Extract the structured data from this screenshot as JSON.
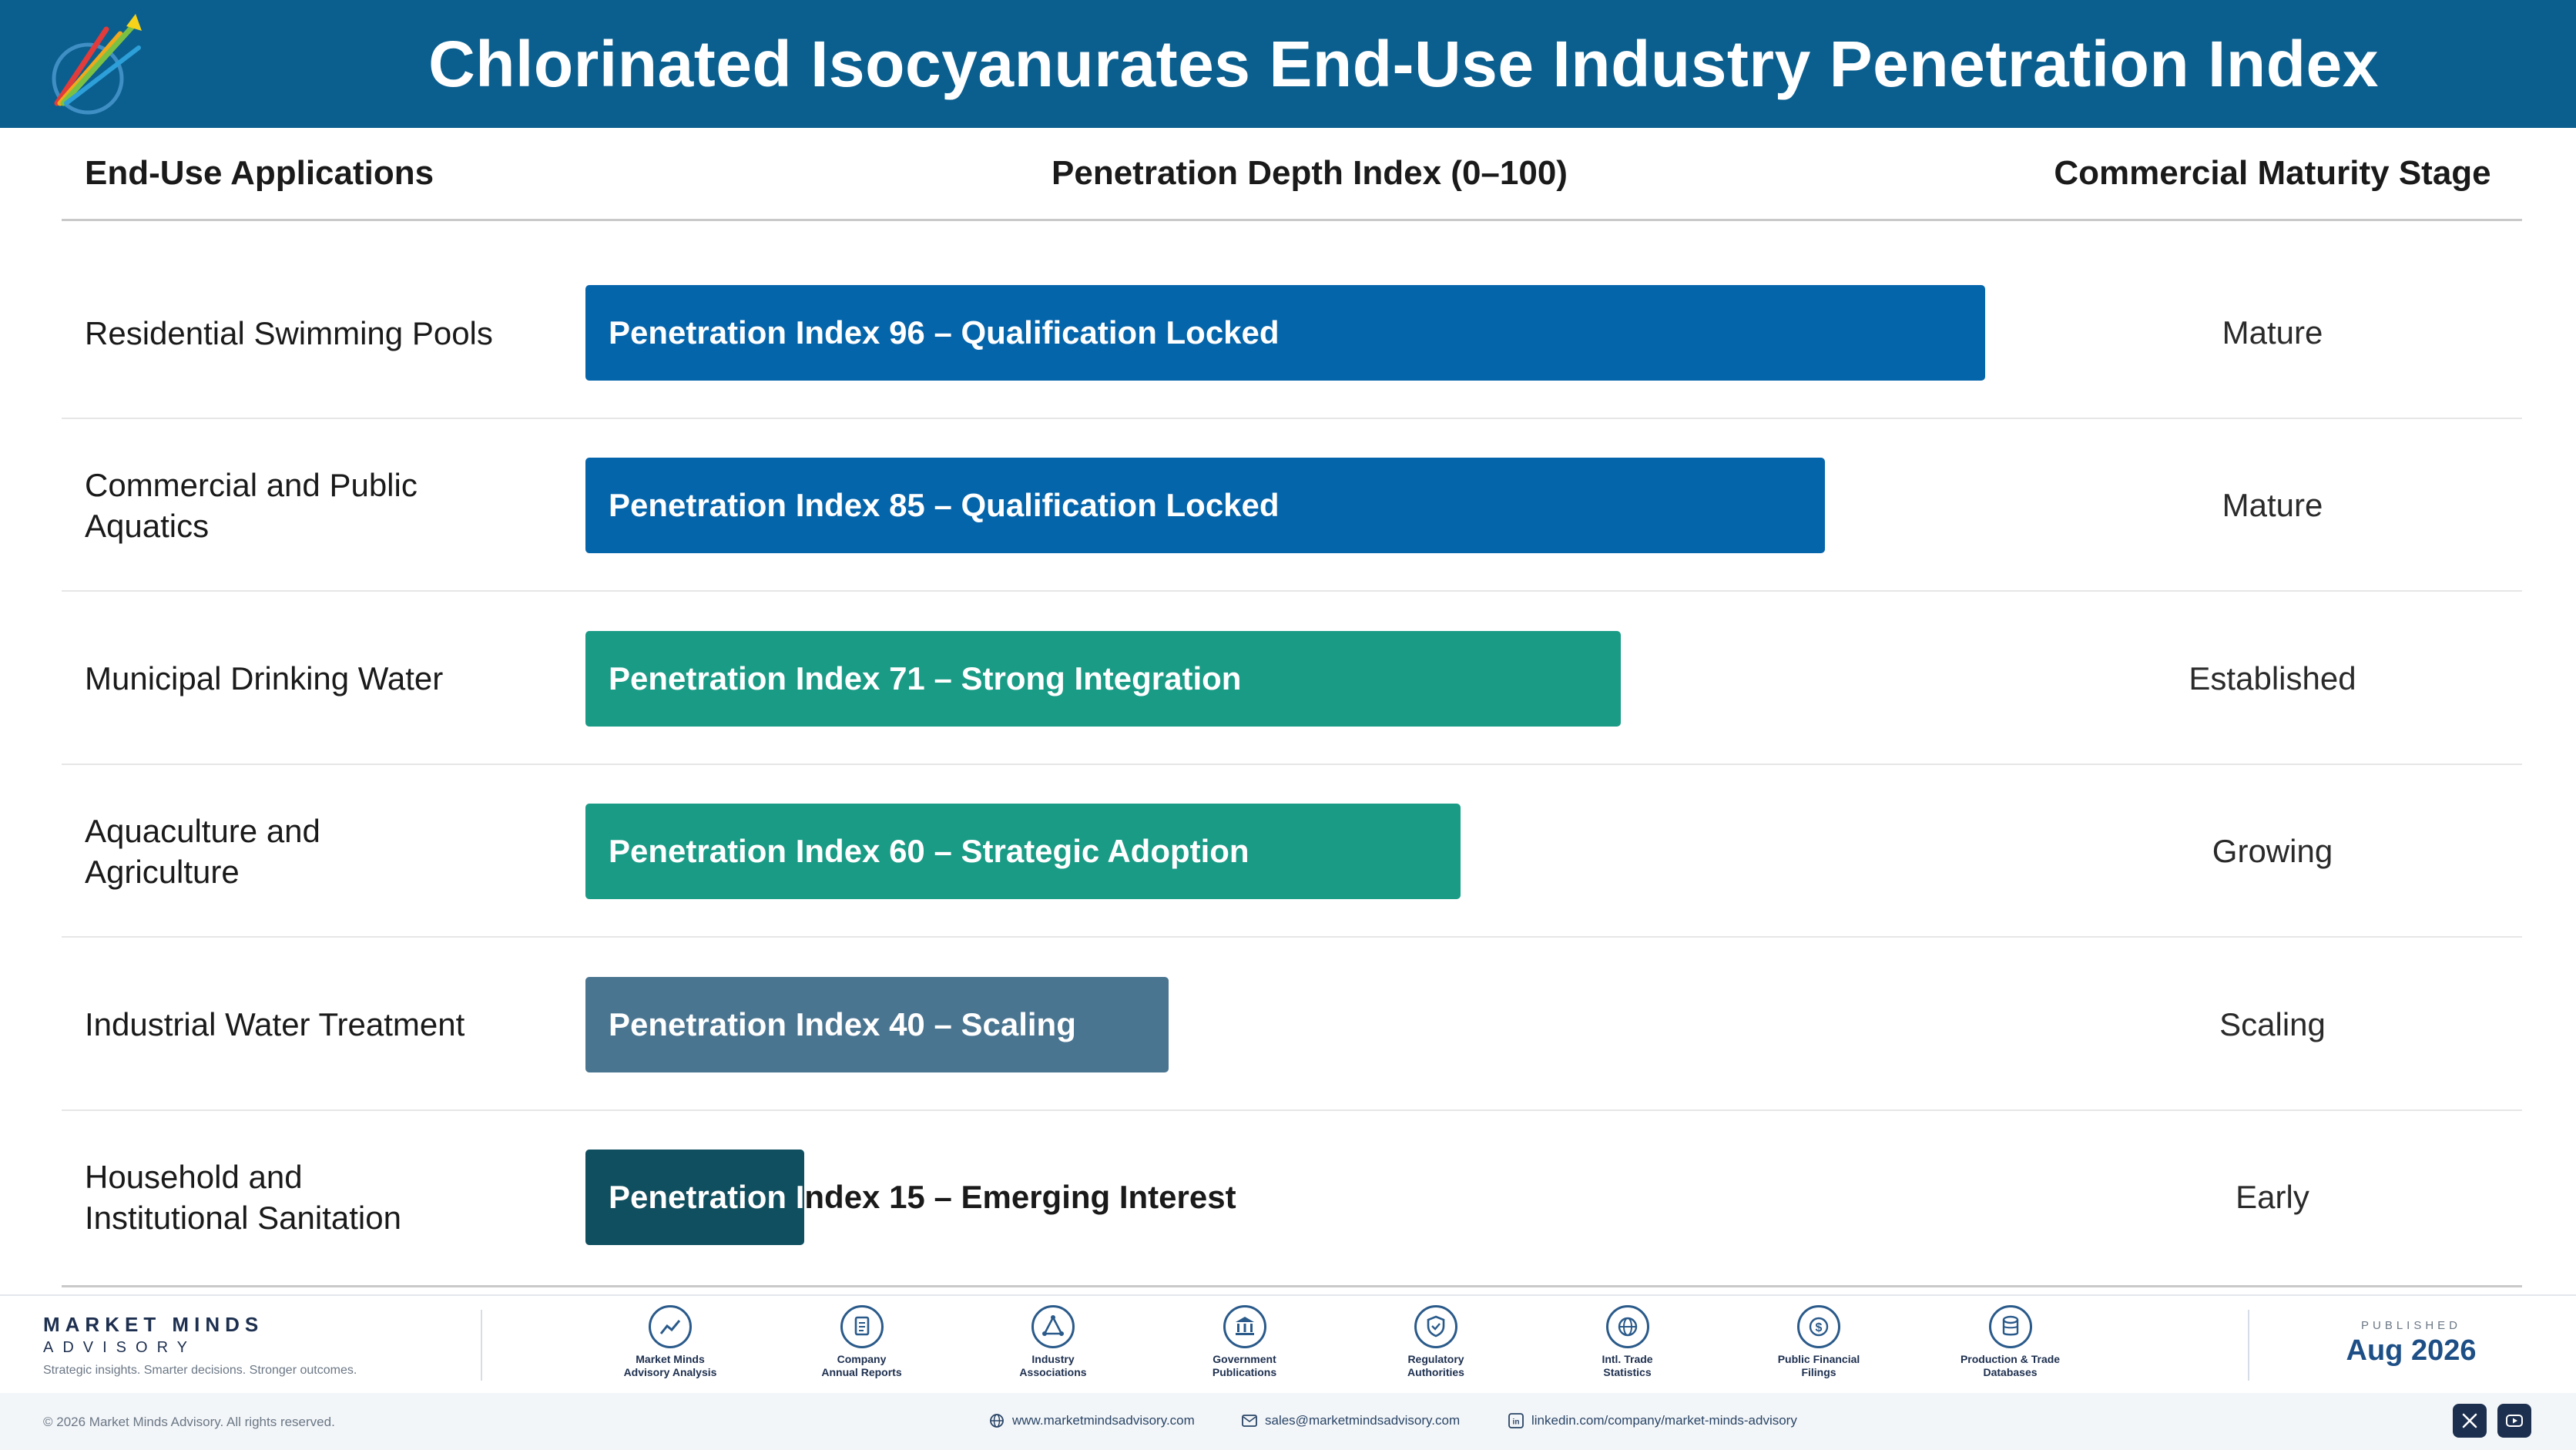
{
  "title": "Chlorinated Isocyanurates End-Use Industry Penetration Index",
  "columns": {
    "applications": "End-Use Applications",
    "index": "Penetration Depth Index (0–100)",
    "stage": "Commercial Maturity Stage"
  },
  "colors": {
    "header": "#0a5f8f",
    "qualification_locked": "#0565ab",
    "strong_integration": "#1a9b86",
    "strategic_adoption": "#1a9b86",
    "scaling": "#4a7591",
    "emerging_interest": "#0f4f5f"
  },
  "chart_data": {
    "type": "bar",
    "orientation": "horizontal",
    "xlim": [
      0,
      100
    ],
    "categories": [
      "Residential Swimming Pools",
      "Commercial and Public Aquatics",
      "Municipal Drinking Water",
      "Aquaculture and Agriculture",
      "Industrial Water Treatment",
      "Household and Institutional Sanitation"
    ],
    "values": [
      96,
      85,
      71,
      60,
      40,
      15
    ],
    "labels": [
      "Penetration Index 96 – Qualification Locked",
      "Penetration Index 85 – Qualification Locked",
      "Penetration Index 71 – Strong Integration",
      "Penetration Index 60 – Strategic Adoption",
      "Penetration Index 40 – Scaling",
      "Penetration Index 15 – Emerging Interest"
    ],
    "stages": [
      "Mature",
      "Mature",
      "Established",
      "Growing",
      "Scaling",
      "Early"
    ],
    "bar_colors": [
      "#0565ab",
      "#0565ab",
      "#1a9b86",
      "#1a9b86",
      "#4a7591",
      "#0f4f5f"
    ]
  },
  "rows_display": [
    {
      "label_lines": [
        "Residential Swimming Pools"
      ]
    },
    {
      "label_lines": [
        "Commercial and Public",
        "Aquatics"
      ]
    },
    {
      "label_lines": [
        "Municipal Drinking Water"
      ]
    },
    {
      "label_lines": [
        "Aquaculture and",
        "Agriculture"
      ]
    },
    {
      "label_lines": [
        "Industrial Water Treatment"
      ]
    },
    {
      "label_lines": [
        "Household and",
        "Institutional Sanitation"
      ]
    }
  ],
  "footer": {
    "brand_name": "MARKET MINDS",
    "brand_sub": "ADVISORY",
    "tagline": "Strategic insights. Smarter decisions. Stronger outcomes.",
    "sources": [
      {
        "line1": "Market Minds",
        "line2": "Advisory Analysis",
        "icon": "chart-line-icon"
      },
      {
        "line1": "Company",
        "line2": "Annual Reports",
        "icon": "document-icon"
      },
      {
        "line1": "Industry",
        "line2": "Associations",
        "icon": "network-icon"
      },
      {
        "line1": "Government",
        "line2": "Publications",
        "icon": "government-building-icon"
      },
      {
        "line1": "Regulatory",
        "line2": "Authorities",
        "icon": "shield-check-icon"
      },
      {
        "line1": "Intl. Trade",
        "line2": "Statistics",
        "icon": "globe-icon"
      },
      {
        "line1": "Public Financial",
        "line2": "Filings",
        "icon": "dollar-coin-icon"
      },
      {
        "line1": "Production & Trade",
        "line2": "Databases",
        "icon": "database-icon"
      }
    ],
    "published_label": "PUBLISHED",
    "published_date": "Aug 2026",
    "copyright": "© 2026 Market Minds Advisory. All rights reserved.",
    "website": "www.marketmindsadvisory.com",
    "email": "sales@marketmindsadvisory.com",
    "linkedin": "linkedin.com/company/market-minds-advisory"
  }
}
